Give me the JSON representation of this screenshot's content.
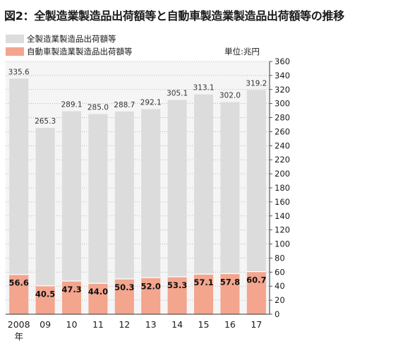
{
  "title": "図2：全製造業製造品出荷額等と自動車製造業製造品出荷額等の推移",
  "colors": {
    "total": "#dcdcdc",
    "auto": "#f3a58e",
    "plot_bg": "#f5f5f5",
    "grid": "#aaaaaa",
    "gap": "#ffffff"
  },
  "chart_data": {
    "type": "bar",
    "title": "図2：全製造業製造品出荷額等と自動車製造業製造品出荷額等の推移",
    "unit": "単位:兆円",
    "categories": [
      "2008",
      "09",
      "10",
      "11",
      "12",
      "13",
      "14",
      "15",
      "16",
      "17"
    ],
    "first_category_suffix": "年",
    "series": [
      {
        "name": "全製造業製造品出荷額等",
        "values": [
          335.6,
          265.3,
          289.1,
          285.0,
          288.7,
          292.1,
          305.1,
          313.1,
          302.0,
          319.2
        ],
        "labels": [
          "335.6",
          "265.3",
          "289.1",
          "285.0",
          "288.7",
          "292.1",
          "305.1",
          "313.1",
          "302.0",
          "319.2"
        ]
      },
      {
        "name": "自動車製造業製造品出荷額等",
        "values": [
          56.6,
          40.5,
          47.3,
          44.0,
          50.3,
          52.0,
          53.3,
          57.1,
          57.8,
          60.7
        ],
        "labels": [
          "56.6",
          "40.5",
          "47.3",
          "44.0",
          "50.3",
          "52.0",
          "53.3",
          "57.1",
          "57.8",
          "60.7"
        ]
      }
    ],
    "ylim": [
      0,
      360
    ],
    "yticks": [
      "0",
      "20",
      "40",
      "60",
      "80",
      "100",
      "120",
      "140",
      "160",
      "180",
      "200",
      "220",
      "240",
      "260",
      "280",
      "300",
      "320",
      "340",
      "360"
    ],
    "y_axis_side": "right",
    "grid": true,
    "legend_position": "top-left",
    "overlap": true
  }
}
